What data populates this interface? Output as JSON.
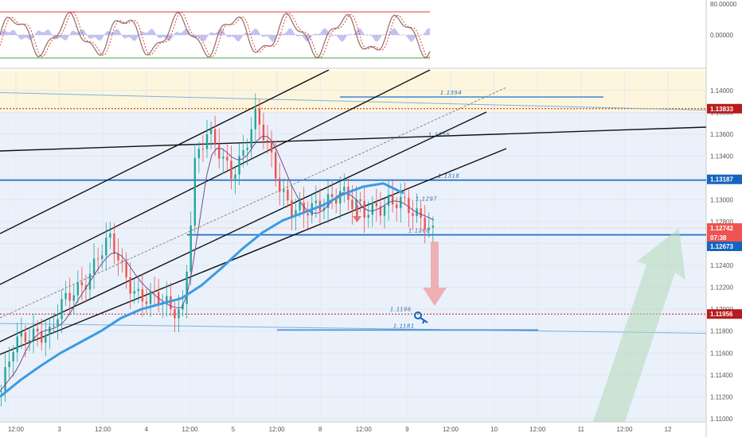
{
  "chart_data": {
    "type": "line",
    "title": "",
    "oscillator": {
      "y_ticks": [
        "80.00000",
        "0.00000"
      ],
      "upper_level": 80,
      "lower_level": -80
    },
    "price": {
      "ylim": [
        1.1097,
        1.1418
      ],
      "y_ticks": [
        {
          "value": 1.14,
          "label": "1.14000"
        },
        {
          "value": 1.138,
          "label": "1.13800"
        },
        {
          "value": 1.136,
          "label": "1.13600"
        },
        {
          "value": 1.134,
          "label": "1.13400"
        },
        {
          "value": 1.132,
          "label": "1.13200"
        },
        {
          "value": 1.13,
          "label": "1.13000"
        },
        {
          "value": 1.128,
          "label": "1.12800"
        },
        {
          "value": 1.126,
          "label": "1.12600"
        },
        {
          "value": 1.124,
          "label": "1.12400"
        },
        {
          "value": 1.122,
          "label": "1.12200"
        },
        {
          "value": 1.12,
          "label": "1.12000"
        },
        {
          "value": 1.118,
          "label": "1.11800"
        },
        {
          "value": 1.116,
          "label": "1.11600"
        },
        {
          "value": 1.114,
          "label": "1.11400"
        },
        {
          "value": 1.112,
          "label": "1.11200"
        },
        {
          "value": 1.11,
          "label": "1.11000"
        }
      ],
      "x_ticks": [
        "12:00",
        "3",
        "12:00",
        "4",
        "12:00",
        "5",
        "12:00",
        "8",
        "12:00",
        "9",
        "12:00",
        "10",
        "12:00",
        "11",
        "12:00",
        "12"
      ],
      "price_tags": [
        {
          "label": "1.13833",
          "value": 1.13833,
          "color": "#b71c1c"
        },
        {
          "label": "1.13187",
          "value": 1.13187,
          "color": "#1565c0"
        },
        {
          "label": "1.12742",
          "value": 1.12742,
          "color": "#ef5350"
        },
        {
          "label": "07:38",
          "value": 1.12655,
          "color": "#ef5350"
        },
        {
          "label": "1.12673",
          "value": 1.12575,
          "color": "#1565c0"
        },
        {
          "label": "1.11956",
          "value": 1.11956,
          "color": "#b71c1c"
        }
      ],
      "level_labels": [
        {
          "label": "1.1394",
          "value": 1.1394
        },
        {
          "label": "1.1356",
          "value": 1.1356
        },
        {
          "label": "1.1318",
          "value": 1.1318
        },
        {
          "label": "1.1297",
          "value": 1.1297
        },
        {
          "label": "1.1268",
          "value": 1.1268
        },
        {
          "label": "1.1196",
          "value": 1.1196
        },
        {
          "label": "1.1181",
          "value": 1.1181
        }
      ],
      "resistance_zone": [
        1.138,
        1.1418
      ],
      "series": [
        {
          "values": [
            1.1125,
            1.116,
            1.1175,
            1.1185,
            1.1178,
            1.1198,
            1.1215,
            1.1232,
            1.125,
            1.1258,
            1.1235,
            1.1222,
            1.1212,
            1.1204,
            1.1198,
            1.1205,
            1.1275,
            1.1335,
            1.1355,
            1.1342,
            1.133,
            1.1345,
            1.137,
            1.1348,
            1.1318,
            1.1295,
            1.1283,
            1.129,
            1.1305,
            1.1312,
            1.1292,
            1.1285,
            1.1298,
            1.1302,
            1.1293,
            1.1284,
            1.1285,
            1.1274
          ],
          "x_index": [
            0,
            12,
            24,
            36,
            48,
            60,
            72,
            84,
            96,
            108,
            120,
            132,
            144,
            156,
            168,
            180,
            187,
            192,
            204,
            216,
            228,
            240,
            252,
            264,
            276,
            288,
            300,
            312,
            324,
            336,
            348,
            360,
            372,
            384,
            396,
            408,
            420,
            430
          ]
        },
        {
          "values": [
            1.112,
            1.1135,
            1.1148,
            1.116,
            1.117,
            1.118,
            1.1192,
            1.12,
            1.1205,
            1.121,
            1.1222,
            1.1238,
            1.1255,
            1.127,
            1.1281,
            1.1288,
            1.1295,
            1.1305,
            1.1312,
            1.1315,
            1.1306
          ],
          "x_index": [
            0,
            20,
            40,
            60,
            80,
            100,
            120,
            140,
            160,
            180,
            200,
            220,
            240,
            260,
            280,
            300,
            320,
            340,
            360,
            380,
            400
          ]
        }
      ],
      "x_count": 700
    }
  }
}
